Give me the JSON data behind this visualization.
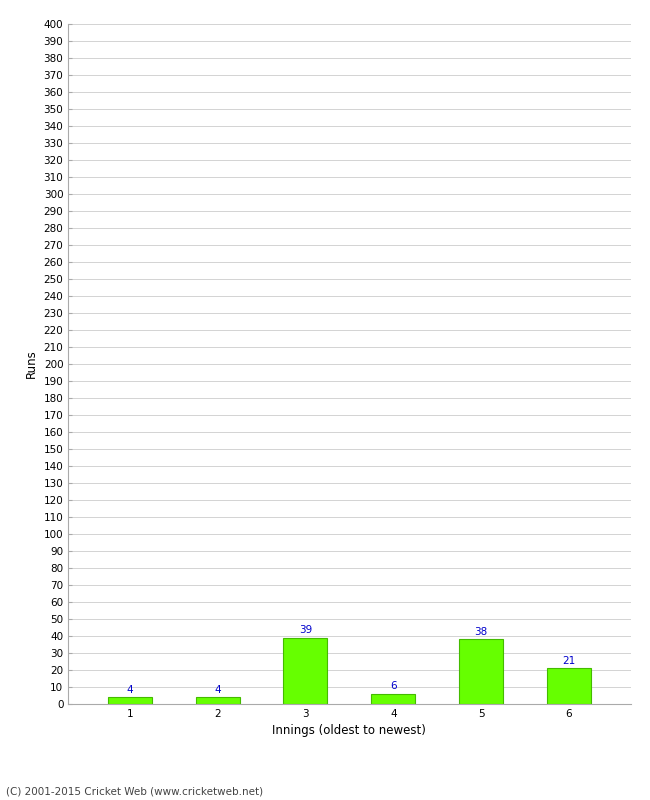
{
  "categories": [
    "1",
    "2",
    "3",
    "4",
    "5",
    "6"
  ],
  "values": [
    4,
    4,
    39,
    6,
    38,
    21
  ],
  "bar_color": "#66ff00",
  "bar_edge_color": "#44bb00",
  "label_color": "#0000cc",
  "xlabel": "Innings (oldest to newest)",
  "ylabel": "Runs",
  "ylim": [
    0,
    400
  ],
  "ytick_step": 10,
  "background_color": "#ffffff",
  "grid_color": "#cccccc",
  "footer": "(C) 2001-2015 Cricket Web (www.cricketweb.net)",
  "label_fontsize": 7.5,
  "axis_label_fontsize": 8.5,
  "tick_fontsize": 7.5,
  "footer_fontsize": 7.5,
  "bar_width": 0.5
}
